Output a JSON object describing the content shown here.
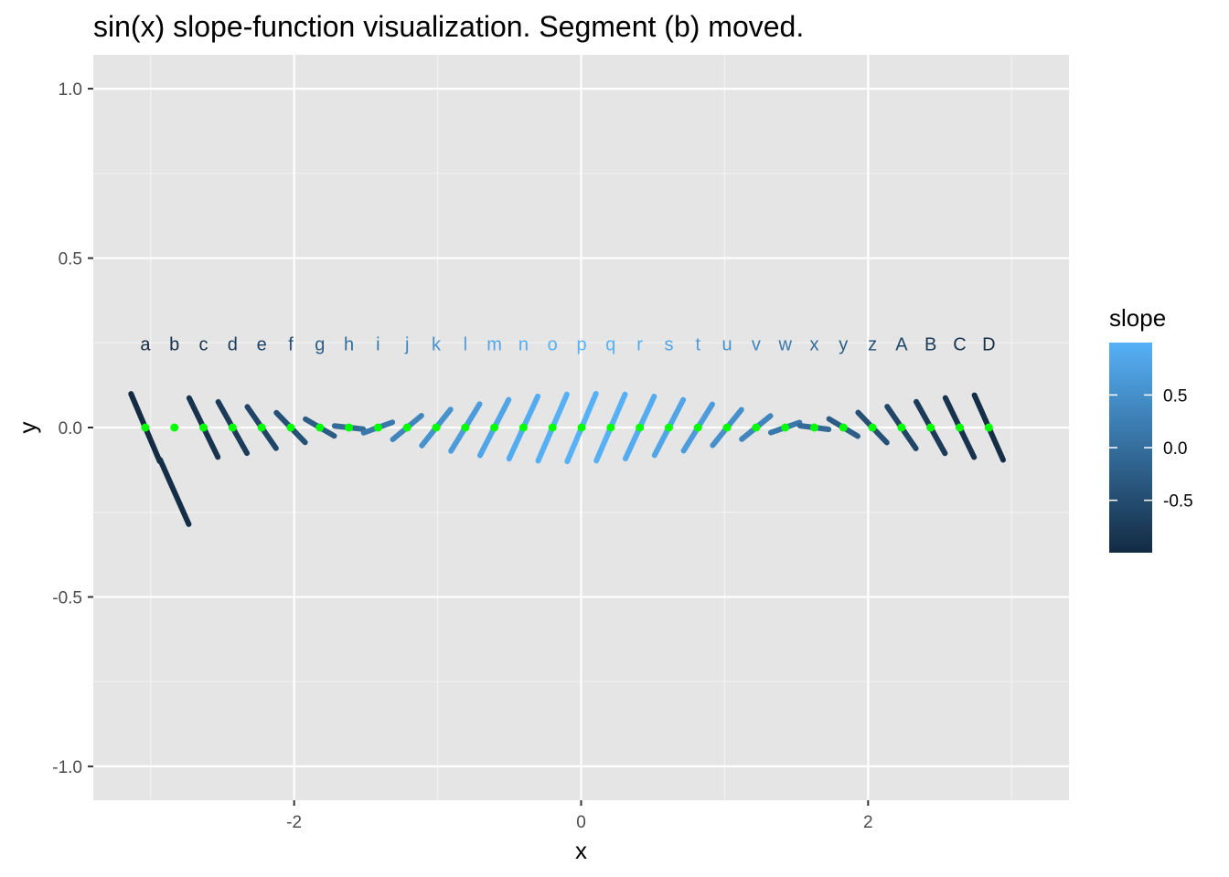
{
  "chart_data": {
    "type": "scatter",
    "title": "sin(x) slope-function visualization. Segment (b) moved.",
    "xlabel": "x",
    "ylabel": "y",
    "xlim": [
      -3.4,
      3.4
    ],
    "ylim": [
      -1.1,
      1.1
    ],
    "x_ticks": [
      -2,
      0,
      2
    ],
    "x_tick_labels": [
      "-2",
      "0",
      "2"
    ],
    "y_ticks": [
      -1.0,
      -0.5,
      0.0,
      0.5,
      1.0
    ],
    "y_tick_labels": [
      "-1.0",
      "-0.5",
      "0.0",
      "0.5",
      "1.0"
    ],
    "grid": true,
    "point_color": "#00ff00",
    "label_y": 0.25,
    "segment_half_width": 0.1,
    "legend": {
      "title": "slope",
      "position": "right",
      "ticks": [
        0.5,
        0.0,
        -0.5
      ],
      "tick_labels": [
        "0.5",
        "0.0",
        "-0.5"
      ],
      "range": [
        -0.9977,
        0.9977
      ],
      "low_color": "#132B43",
      "high_color": "#56B1F7"
    },
    "segments": [
      {
        "label": "a",
        "x": -3.0371,
        "y": 0.0,
        "slope": -0.9952
      },
      {
        "label": "b",
        "x": -2.8344,
        "y": -0.19,
        "slope": -0.9526,
        "moved": true,
        "point_x": -2.8344,
        "point_y": 0.0
      },
      {
        "label": "c",
        "x": -2.6317,
        "y": 0.0,
        "slope": -0.8719
      },
      {
        "label": "d",
        "x": -2.429,
        "y": 0.0,
        "slope": -0.7567
      },
      {
        "label": "e",
        "x": -2.2263,
        "y": 0.0,
        "slope": -0.6119
      },
      {
        "label": "f",
        "x": -2.0236,
        "y": 0.0,
        "slope": -0.4376
      },
      {
        "label": "g",
        "x": -1.8209,
        "y": 0.0,
        "slope": -0.2478
      },
      {
        "label": "h",
        "x": -1.6182,
        "y": 0.0,
        "slope": -0.0474
      },
      {
        "label": "i",
        "x": -1.4155,
        "y": 0.0,
        "slope": 0.1545
      },
      {
        "label": "j",
        "x": -1.2128,
        "y": 0.0,
        "slope": 0.3505
      },
      {
        "label": "k",
        "x": -1.0101,
        "y": 0.0,
        "slope": 0.5317
      },
      {
        "label": "l",
        "x": -0.8074,
        "y": 0.0,
        "slope": 0.6916
      },
      {
        "label": "m",
        "x": -0.6047,
        "y": 0.0,
        "slope": 0.8226
      },
      {
        "label": "n",
        "x": -0.402,
        "y": 0.0,
        "slope": 0.9203
      },
      {
        "label": "o",
        "x": -0.1993,
        "y": 0.0,
        "slope": 0.9802
      },
      {
        "label": "p",
        "x": 0.0034,
        "y": 0.0,
        "slope": 1.0
      },
      {
        "label": "q",
        "x": 0.2061,
        "y": 0.0,
        "slope": 0.9788
      },
      {
        "label": "r",
        "x": 0.4088,
        "y": 0.0,
        "slope": 0.9176
      },
      {
        "label": "s",
        "x": 0.6115,
        "y": 0.0,
        "slope": 0.8188
      },
      {
        "label": "t",
        "x": 0.8142,
        "y": 0.0,
        "slope": 0.6866
      },
      {
        "label": "u",
        "x": 1.0169,
        "y": 0.0,
        "slope": 0.526
      },
      {
        "label": "v",
        "x": 1.2196,
        "y": 0.0,
        "slope": 0.3441
      },
      {
        "label": "w",
        "x": 1.4223,
        "y": 0.0,
        "slope": 0.1479
      },
      {
        "label": "x",
        "x": 1.625,
        "y": 0.0,
        "slope": -0.0542
      },
      {
        "label": "y",
        "x": 1.8277,
        "y": 0.0,
        "slope": -0.2544
      },
      {
        "label": "z",
        "x": 2.0304,
        "y": 0.0,
        "slope": -0.4438
      },
      {
        "label": "A",
        "x": 2.2331,
        "y": 0.0,
        "slope": -0.6173
      },
      {
        "label": "B",
        "x": 2.4358,
        "y": 0.0,
        "slope": -0.7612
      },
      {
        "label": "C",
        "x": 2.6385,
        "y": 0.0,
        "slope": -0.8753
      },
      {
        "label": "D",
        "x": 2.8412,
        "y": 0.0,
        "slope": -0.9549
      }
    ]
  }
}
